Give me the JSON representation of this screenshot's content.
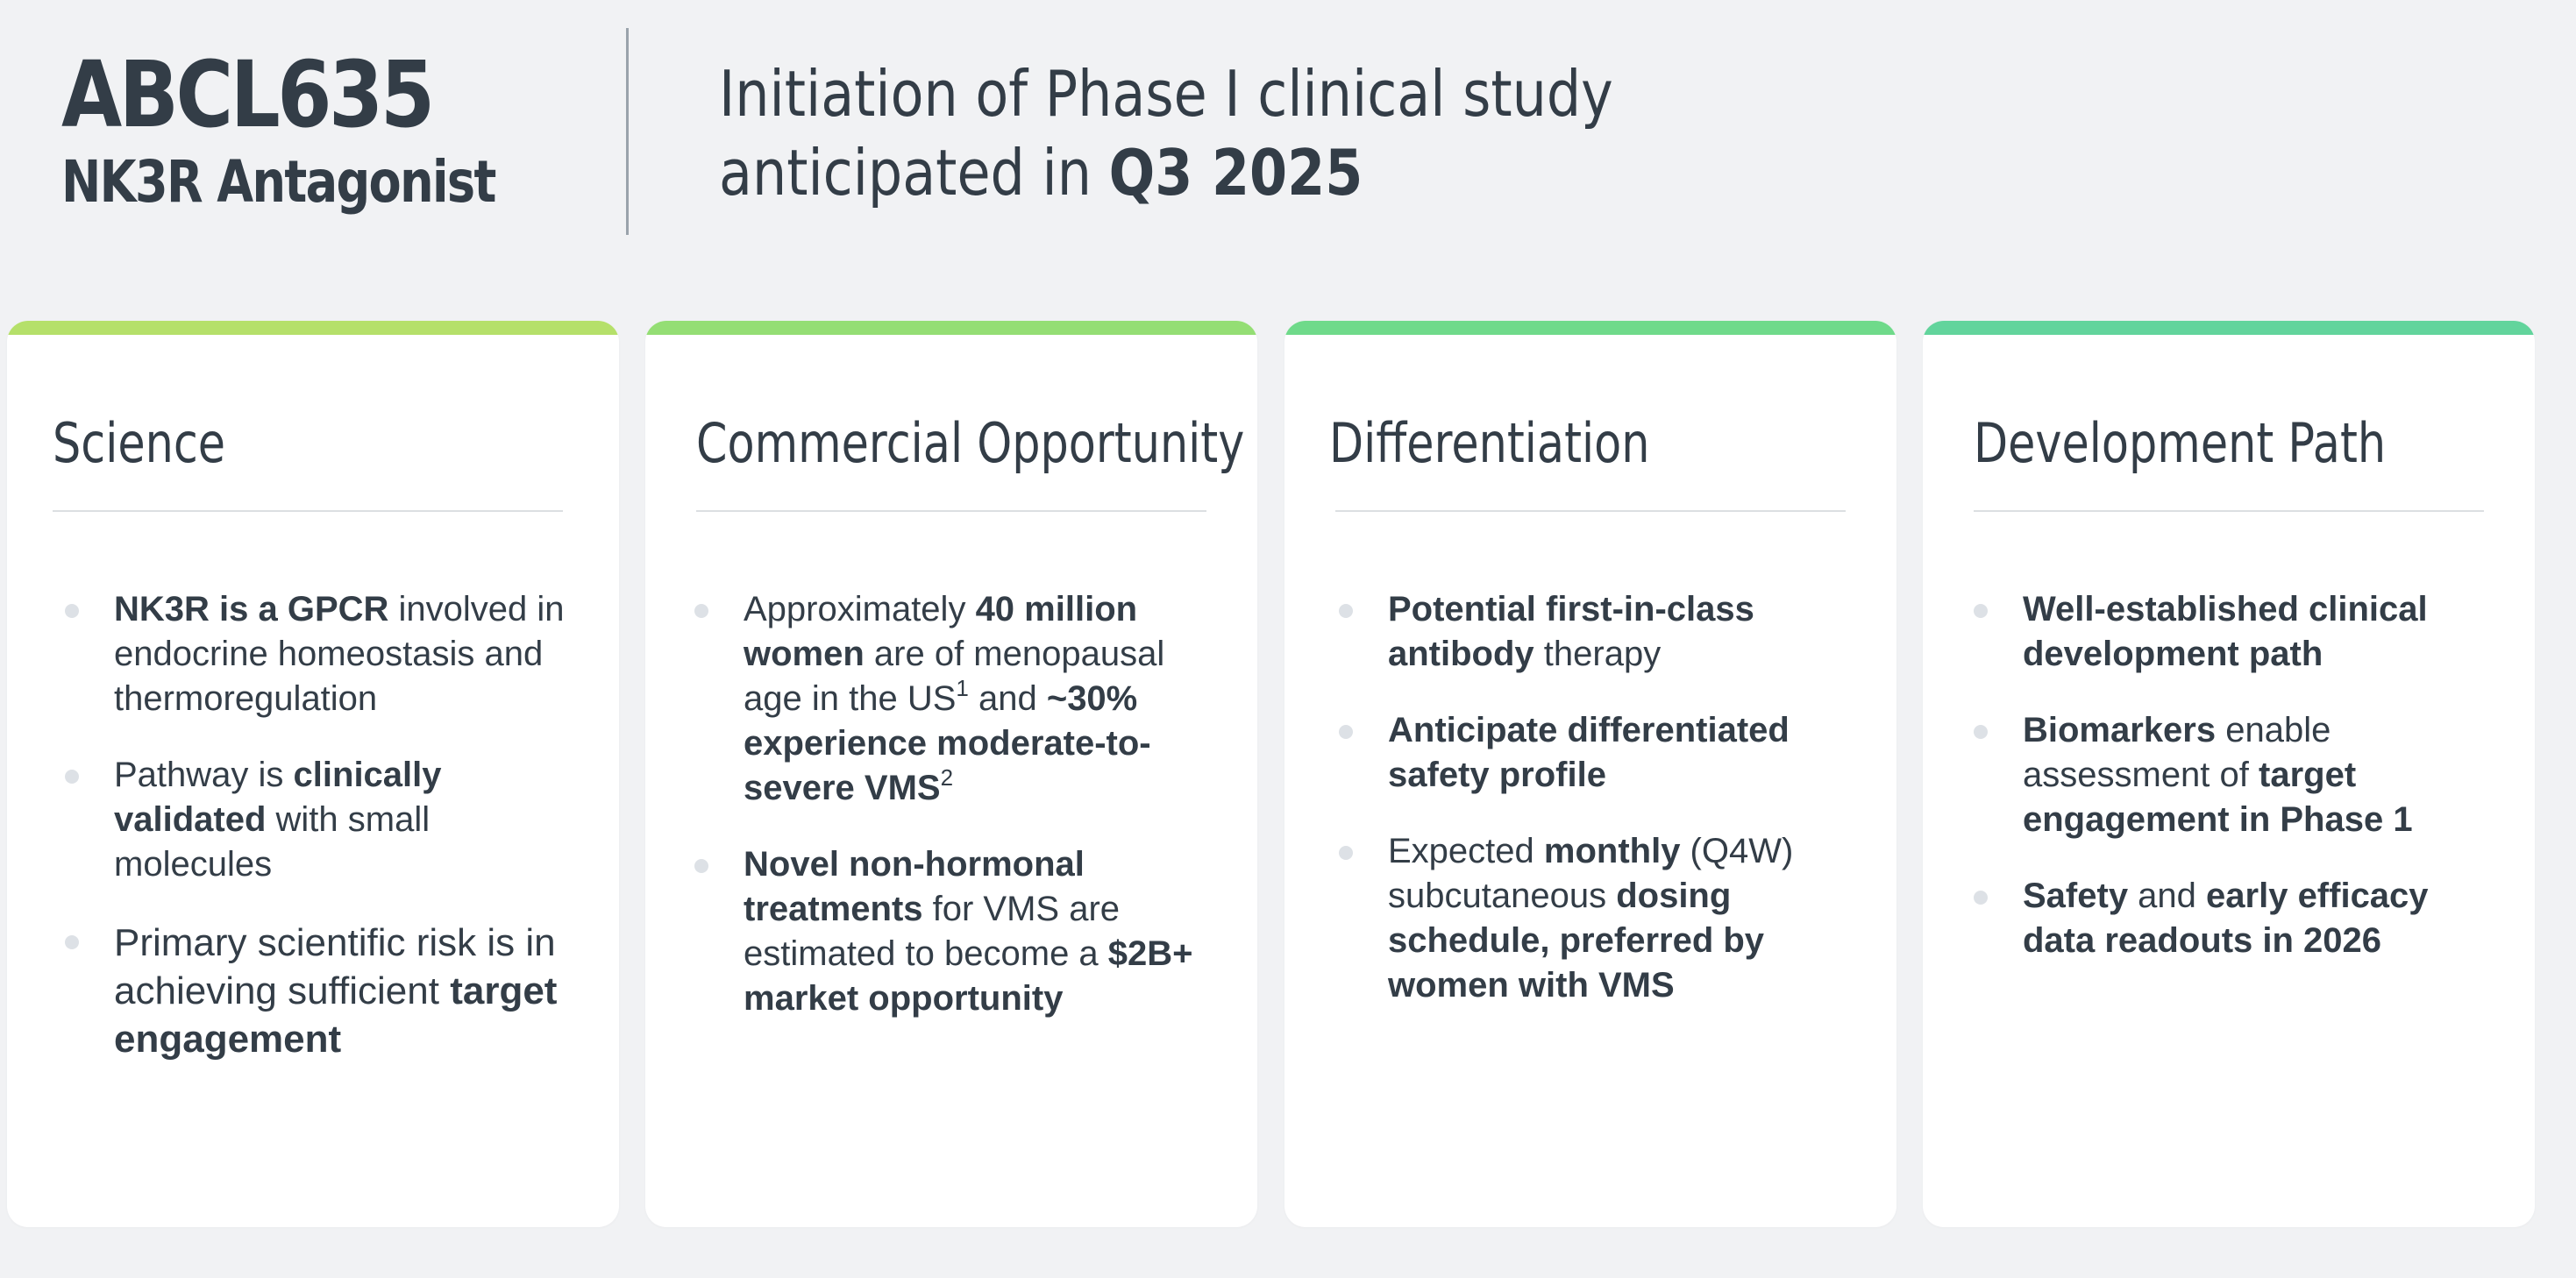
{
  "header": {
    "product_name": "ABCL635",
    "mechanism": "NK3R Antagonist",
    "milestone_line1": "Initiation of Phase I clinical study",
    "milestone_line2_prefix": "anticipated in ",
    "milestone_line2_bold": "Q3 2025"
  },
  "colors": {
    "background": "#f1f2f4",
    "card_background": "#ffffff",
    "text": "#333d47",
    "accent_science": "#b5e06a",
    "accent_commercial": "#94de74",
    "accent_differentiation": "#6fda8a",
    "accent_development": "#62d49c",
    "bullet": "#dde1e6"
  },
  "cards": {
    "science": {
      "title": "Science",
      "b1_bold": "NK3R is a GPCR",
      "b1_rest": " involved in endocrine homeostasis and thermoregulation",
      "b2_pre": "Pathway is ",
      "b2_bold": "clinically validated",
      "b2_rest": " with small molecules",
      "b3_pre": "Primary scientific risk is in achieving sufficient ",
      "b3_bold": "target engagement"
    },
    "commercial": {
      "title": "Commercial Opportunity",
      "b1_pre": "Approximately ",
      "b1_bold1": "40 million women",
      "b1_mid": " are of menopausal age in the US",
      "b1_sup1": "1",
      "b1_and": " and ",
      "b1_bold2": "~30% experience moderate-to-severe VMS",
      "b1_sup2": "2",
      "b2_bold": "Novel non-hormonal treatments",
      "b2_mid": " for VMS are estimated to become a ",
      "b2_bold2": "$2B+ market opportunity"
    },
    "differentiation": {
      "title": "Differentiation",
      "b1_bold": "Potential first-in-class antibody",
      "b1_rest": " therapy",
      "b2_bold": "Anticipate differentiated safety profile",
      "b3_pre": "Expected ",
      "b3_bold": "monthly",
      "b3_mid": " (Q4W) subcutaneous ",
      "b3_bold2": "dosing schedule, preferred by women with VMS"
    },
    "development": {
      "title": "Development Path",
      "b1_bold": "Well-established clinical development path",
      "b2_bold": "Biomarkers",
      "b2_mid": " enable assessment of ",
      "b2_bold2": "target engagement in Phase 1",
      "b3_bold": "Safety",
      "b3_mid": " and ",
      "b3_bold2": "early efficacy data readouts in 2026"
    }
  }
}
